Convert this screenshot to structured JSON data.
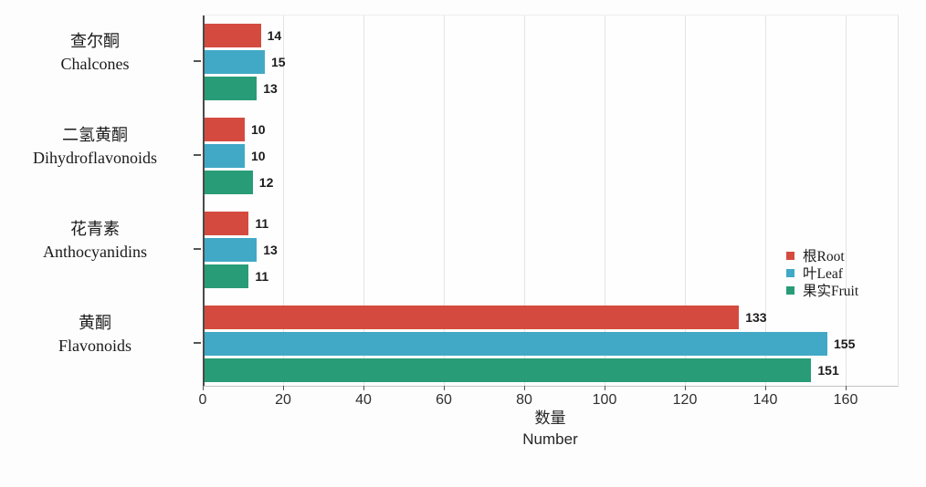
{
  "chart_data": {
    "type": "bar",
    "orientation": "horizontal",
    "xlabel_zh": "数量",
    "xlabel_en": "Number",
    "xlim": [
      0,
      160
    ],
    "xticks": [
      0,
      20,
      40,
      60,
      80,
      100,
      120,
      140,
      160
    ],
    "grid": true,
    "legend_position": "middle-right",
    "bar_value_labels": true,
    "categories": [
      {
        "zh": "查尔酮",
        "en": "Chalcones"
      },
      {
        "zh": "二氢黄酮",
        "en": "Dihydroflavonoids"
      },
      {
        "zh": "花青素",
        "en": "Anthocyanidins"
      },
      {
        "zh": "黄酮",
        "en": "Flavonoids"
      }
    ],
    "series": [
      {
        "name": "根Root",
        "color": "#d54a3f",
        "values": [
          14,
          10,
          11,
          133
        ]
      },
      {
        "name": "叶Leaf",
        "color": "#41a9c6",
        "values": [
          15,
          10,
          13,
          155
        ]
      },
      {
        "name": "果实Fruit",
        "color": "#289c77",
        "values": [
          13,
          12,
          11,
          151
        ]
      }
    ]
  },
  "colors": {
    "grid": "#e4e4e4",
    "y_axis": "#4a4a4a",
    "x_axis": "#c4c4c4",
    "tick": "#555555",
    "text": "#1a1a1a"
  }
}
